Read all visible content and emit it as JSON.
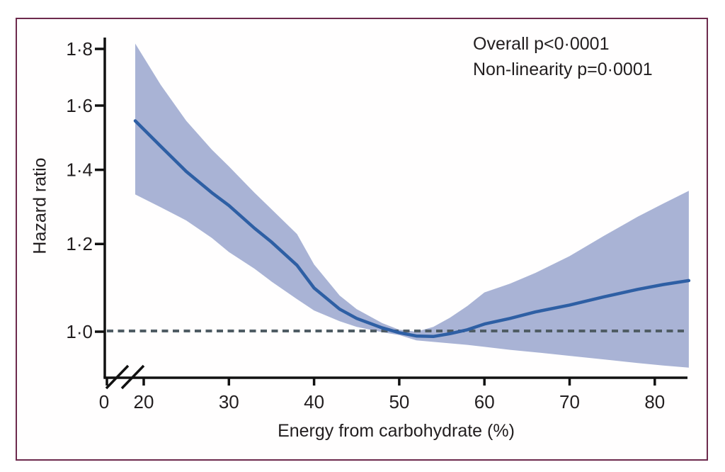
{
  "figure": {
    "kind": "forest-spline-figure",
    "border_color": "#6d2a4d",
    "background_color": "#fffefe"
  },
  "annotations": {
    "overall_p": "Overall p<0·0001",
    "non_linearity_p": "Non-linearity p=0·0001"
  },
  "chart_data": {
    "type": "line",
    "title": "",
    "xlabel": "Energy from carbohydrate (%)",
    "ylabel": "Hazard ratio",
    "x_axis_break_after_zero": true,
    "y_scale": "log",
    "x_range_plotted": [
      19,
      84
    ],
    "ylim_plotted": [
      0.9,
      1.85
    ],
    "grid": "off",
    "legend": "none",
    "reference_line": {
      "y": 1.0,
      "style": "dashed",
      "color": "#4f5c64"
    },
    "x_ticks": [
      {
        "label": "0",
        "value": 0
      },
      {
        "label": "20",
        "value": 20
      },
      {
        "label": "30",
        "value": 30
      },
      {
        "label": "40",
        "value": 40
      },
      {
        "label": "50",
        "value": 50
      },
      {
        "label": "60",
        "value": 60
      },
      {
        "label": "70",
        "value": 70
      },
      {
        "label": "80",
        "value": 80
      }
    ],
    "y_ticks": [
      {
        "label": "1·0",
        "value": 1.0
      },
      {
        "label": "1·2",
        "value": 1.2
      },
      {
        "label": "1·4",
        "value": 1.4
      },
      {
        "label": "1·6",
        "value": 1.6
      },
      {
        "label": "1·8",
        "value": 1.8
      }
    ],
    "series": [
      {
        "name": "Hazard ratio with 95% CI band",
        "x": [
          19,
          22,
          25,
          28,
          30,
          33,
          35,
          38,
          40,
          43,
          45,
          48,
          50,
          52,
          54,
          56,
          58,
          60,
          63,
          66,
          70,
          74,
          78,
          81,
          84
        ],
        "y": [
          1.55,
          1.47,
          1.395,
          1.335,
          1.3,
          1.24,
          1.205,
          1.148,
          1.095,
          1.048,
          1.028,
          1.008,
          0.998,
          0.991,
          0.99,
          0.996,
          1.004,
          1.016,
          1.028,
          1.042,
          1.057,
          1.075,
          1.092,
          1.103,
          1.112
        ],
        "lower": [
          1.33,
          1.295,
          1.26,
          1.215,
          1.18,
          1.14,
          1.11,
          1.07,
          1.045,
          1.022,
          1.01,
          0.999,
          0.993,
          0.982,
          0.979,
          0.976,
          0.973,
          0.969,
          0.963,
          0.958,
          0.951,
          0.944,
          0.937,
          0.932,
          0.928
        ],
        "upper": [
          1.82,
          1.67,
          1.55,
          1.46,
          1.41,
          1.335,
          1.29,
          1.225,
          1.15,
          1.078,
          1.048,
          1.018,
          1.004,
          1.0,
          1.01,
          1.03,
          1.055,
          1.085,
          1.105,
          1.13,
          1.17,
          1.22,
          1.27,
          1.305,
          1.34
        ]
      }
    ],
    "colors": {
      "line": "#2e5fa4",
      "band": "#a9b3d5",
      "reference": "#4f5c64",
      "axis": "#111111",
      "text": "#221e1f"
    }
  }
}
